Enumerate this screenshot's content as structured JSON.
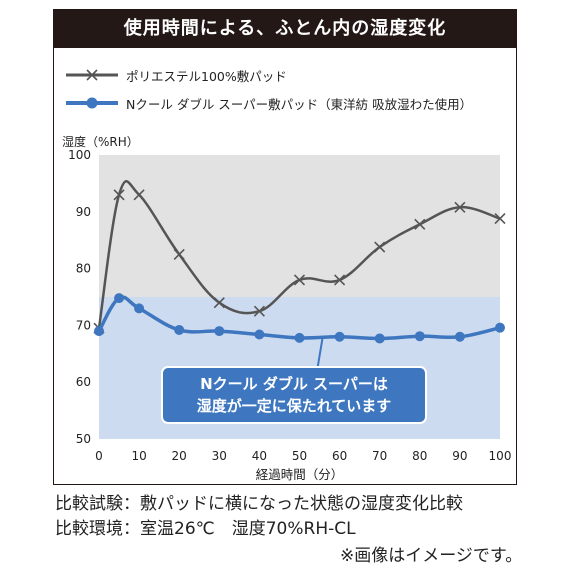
{
  "title": "使用時間による、ふとん内の湿度変化",
  "chart_data": {
    "type": "line",
    "ylabel": "湿度（%RH）",
    "xlabel": "経過時間（分）",
    "xlim": [
      0,
      100
    ],
    "ylim": [
      50,
      100
    ],
    "xticks": [
      0,
      10,
      20,
      30,
      40,
      50,
      60,
      70,
      80,
      90,
      100
    ],
    "yticks": [
      50,
      60,
      70,
      80,
      90,
      100
    ],
    "bands": [
      {
        "from": 75,
        "to": 100,
        "color": "#e2e2e2"
      },
      {
        "from": 50,
        "to": 75,
        "color": "#cddbf0"
      }
    ],
    "series": [
      {
        "name": "ポリエステル100%敷パッド",
        "color": "#555555",
        "marker": "x",
        "x": [
          0,
          5,
          10,
          20,
          30,
          40,
          50,
          60,
          70,
          80,
          90,
          100
        ],
        "y": [
          69.5,
          93.0,
          93.0,
          82.5,
          74.0,
          72.5,
          78.0,
          78.0,
          83.8,
          87.8,
          90.8,
          88.8
        ]
      },
      {
        "name": "Nクール ダブル スーパー敷パッド（東洋紡 吸放湿わた使用）",
        "color": "#3e77c0",
        "marker": "circle",
        "x": [
          0,
          5,
          10,
          20,
          30,
          40,
          50,
          60,
          70,
          80,
          90,
          100
        ],
        "y": [
          69.0,
          74.8,
          73.0,
          69.2,
          69.0,
          68.4,
          67.8,
          68.0,
          67.7,
          68.1,
          68.0,
          69.6
        ]
      }
    ],
    "annotation": {
      "lines": [
        "Nクール ダブル スーパーは",
        "湿度が一定に保たれています"
      ],
      "x": 55,
      "y": 67.8
    }
  },
  "footer": {
    "line1": "比較試験：敷パッドに横になった状態の湿度変化比較",
    "line2": "比較環境：室温26℃　湿度70%RH-CL",
    "note": "※画像はイメージです。"
  }
}
